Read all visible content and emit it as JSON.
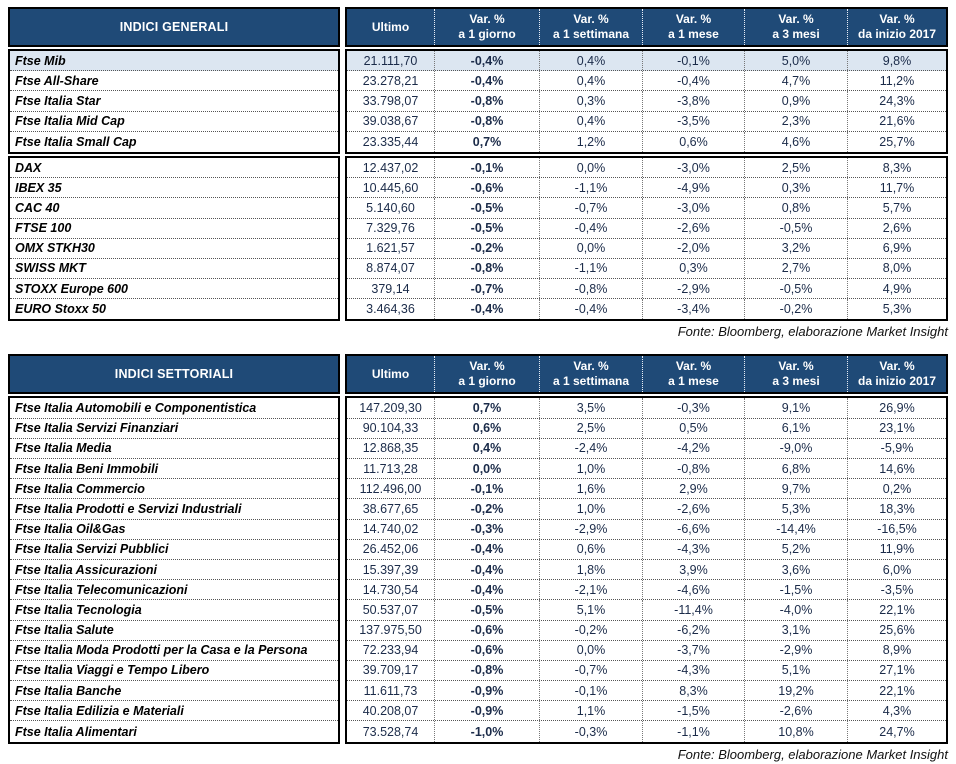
{
  "colors": {
    "header_bg": "#1F4A77",
    "header_text": "#FFFFFF",
    "highlight_bg": "#DCE6F1",
    "value_text": "#1B2B49",
    "border_color": "#000000"
  },
  "tables": [
    {
      "title": "INDICI GENERALI",
      "columns": [
        {
          "title": "Ultimo",
          "sub": ""
        },
        {
          "title": "Var. %",
          "sub": "a 1 giorno"
        },
        {
          "title": "Var. %",
          "sub": "a 1 settimana"
        },
        {
          "title": "Var. %",
          "sub": "a 1 mese"
        },
        {
          "title": "Var. %",
          "sub": "a 3 mesi"
        },
        {
          "title": "Var. %",
          "sub": "da inizio 2017"
        }
      ],
      "groups": [
        {
          "rows": [
            {
              "name": "Ftse Mib",
              "highlight": true,
              "values": [
                "21.111,70",
                "-0,4%",
                "0,4%",
                "-0,1%",
                "5,0%",
                "9,8%"
              ]
            },
            {
              "name": "Ftse All-Share",
              "highlight": false,
              "values": [
                "23.278,21",
                "-0,4%",
                "0,4%",
                "-0,4%",
                "4,7%",
                "11,2%"
              ]
            },
            {
              "name": "Ftse Italia Star",
              "highlight": false,
              "values": [
                "33.798,07",
                "-0,8%",
                "0,3%",
                "-3,8%",
                "0,9%",
                "24,3%"
              ]
            },
            {
              "name": "Ftse Italia Mid Cap",
              "highlight": false,
              "values": [
                "39.038,67",
                "-0,8%",
                "0,4%",
                "-3,5%",
                "2,3%",
                "21,6%"
              ]
            },
            {
              "name": "Ftse Italia Small Cap",
              "highlight": false,
              "values": [
                "23.335,44",
                "0,7%",
                "1,2%",
                "0,6%",
                "4,6%",
                "25,7%"
              ]
            }
          ]
        },
        {
          "rows": [
            {
              "name": "DAX",
              "highlight": false,
              "values": [
                "12.437,02",
                "-0,1%",
                "0,0%",
                "-3,0%",
                "2,5%",
                "8,3%"
              ]
            },
            {
              "name": "IBEX 35",
              "highlight": false,
              "values": [
                "10.445,60",
                "-0,6%",
                "-1,1%",
                "-4,9%",
                "0,3%",
                "11,7%"
              ]
            },
            {
              "name": "CAC 40",
              "highlight": false,
              "values": [
                "5.140,60",
                "-0,5%",
                "-0,7%",
                "-3,0%",
                "0,8%",
                "5,7%"
              ]
            },
            {
              "name": "FTSE 100",
              "highlight": false,
              "values": [
                "7.329,76",
                "-0,5%",
                "-0,4%",
                "-2,6%",
                "-0,5%",
                "2,6%"
              ]
            },
            {
              "name": "OMX STKH30",
              "highlight": false,
              "values": [
                "1.621,57",
                "-0,2%",
                "0,0%",
                "-2,0%",
                "3,2%",
                "6,9%"
              ]
            },
            {
              "name": "SWISS MKT",
              "highlight": false,
              "values": [
                "8.874,07",
                "-0,8%",
                "-1,1%",
                "0,3%",
                "2,7%",
                "8,0%"
              ]
            },
            {
              "name": "STOXX Europe 600",
              "highlight": false,
              "values": [
                "379,14",
                "-0,7%",
                "-0,8%",
                "-2,9%",
                "-0,5%",
                "4,9%"
              ]
            },
            {
              "name": "EURO Stoxx 50",
              "highlight": false,
              "values": [
                "3.464,36",
                "-0,4%",
                "-0,4%",
                "-3,4%",
                "-0,2%",
                "5,3%"
              ]
            }
          ]
        }
      ],
      "source": "Fonte: Bloomberg, elaborazione Market Insight"
    },
    {
      "title": "INDICI SETTORIALI",
      "columns": [
        {
          "title": "Ultimo",
          "sub": ""
        },
        {
          "title": "Var. %",
          "sub": "a 1 giorno"
        },
        {
          "title": "Var. %",
          "sub": "a 1 settimana"
        },
        {
          "title": "Var. %",
          "sub": "a 1 mese"
        },
        {
          "title": "Var. %",
          "sub": "a 3 mesi"
        },
        {
          "title": "Var. %",
          "sub": "da inizio 2017"
        }
      ],
      "groups": [
        {
          "rows": [
            {
              "name": "Ftse Italia Automobili e Componentistica",
              "highlight": false,
              "values": [
                "147.209,30",
                "0,7%",
                "3,5%",
                "-0,3%",
                "9,1%",
                "26,9%"
              ]
            },
            {
              "name": "Ftse Italia Servizi Finanziari",
              "highlight": false,
              "values": [
                "90.104,33",
                "0,6%",
                "2,5%",
                "0,5%",
                "6,1%",
                "23,1%"
              ]
            },
            {
              "name": "Ftse Italia Media",
              "highlight": false,
              "values": [
                "12.868,35",
                "0,4%",
                "-2,4%",
                "-4,2%",
                "-9,0%",
                "-5,9%"
              ]
            },
            {
              "name": "Ftse Italia Beni Immobili",
              "highlight": false,
              "values": [
                "11.713,28",
                "0,0%",
                "1,0%",
                "-0,8%",
                "6,8%",
                "14,6%"
              ]
            },
            {
              "name": "Ftse Italia Commercio",
              "highlight": false,
              "values": [
                "112.496,00",
                "-0,1%",
                "1,6%",
                "2,9%",
                "9,7%",
                "0,2%"
              ]
            },
            {
              "name": "Ftse Italia Prodotti e Servizi Industriali",
              "highlight": false,
              "values": [
                "38.677,65",
                "-0,2%",
                "1,0%",
                "-2,6%",
                "5,3%",
                "18,3%"
              ]
            },
            {
              "name": "Ftse Italia Oil&Gas",
              "highlight": false,
              "values": [
                "14.740,02",
                "-0,3%",
                "-2,9%",
                "-6,6%",
                "-14,4%",
                "-16,5%"
              ]
            },
            {
              "name": "Ftse Italia Servizi Pubblici",
              "highlight": false,
              "values": [
                "26.452,06",
                "-0,4%",
                "0,6%",
                "-4,3%",
                "5,2%",
                "11,9%"
              ]
            },
            {
              "name": "Ftse Italia Assicurazioni",
              "highlight": false,
              "values": [
                "15.397,39",
                "-0,4%",
                "1,8%",
                "3,9%",
                "3,6%",
                "6,0%"
              ]
            },
            {
              "name": "Ftse Italia Telecomunicazioni",
              "highlight": false,
              "values": [
                "14.730,54",
                "-0,4%",
                "-2,1%",
                "-4,6%",
                "-1,5%",
                "-3,5%"
              ]
            },
            {
              "name": "Ftse Italia Tecnologia",
              "highlight": false,
              "values": [
                "50.537,07",
                "-0,5%",
                "5,1%",
                "-11,4%",
                "-4,0%",
                "22,1%"
              ]
            },
            {
              "name": "Ftse Italia Salute",
              "highlight": false,
              "values": [
                "137.975,50",
                "-0,6%",
                "-0,2%",
                "-6,2%",
                "3,1%",
                "25,6%"
              ]
            },
            {
              "name": "Ftse Italia Moda Prodotti per la Casa e la Persona",
              "highlight": false,
              "values": [
                "72.233,94",
                "-0,6%",
                "0,0%",
                "-3,7%",
                "-2,9%",
                "8,9%"
              ]
            },
            {
              "name": "Ftse Italia Viaggi e Tempo Libero",
              "highlight": false,
              "values": [
                "39.709,17",
                "-0,8%",
                "-0,7%",
                "-4,3%",
                "5,1%",
                "27,1%"
              ]
            },
            {
              "name": "Ftse Italia Banche",
              "highlight": false,
              "values": [
                "11.611,73",
                "-0,9%",
                "-0,1%",
                "8,3%",
                "19,2%",
                "22,1%"
              ]
            },
            {
              "name": "Ftse Italia Edilizia e Materiali",
              "highlight": false,
              "values": [
                "40.208,07",
                "-0,9%",
                "1,1%",
                "-1,5%",
                "-2,6%",
                "4,3%"
              ]
            },
            {
              "name": "Ftse Italia Alimentari",
              "highlight": false,
              "values": [
                "73.528,74",
                "-1,0%",
                "-0,3%",
                "-1,1%",
                "10,8%",
                "24,7%"
              ]
            }
          ]
        }
      ],
      "source": "Fonte: Bloomberg, elaborazione Market Insight"
    }
  ]
}
